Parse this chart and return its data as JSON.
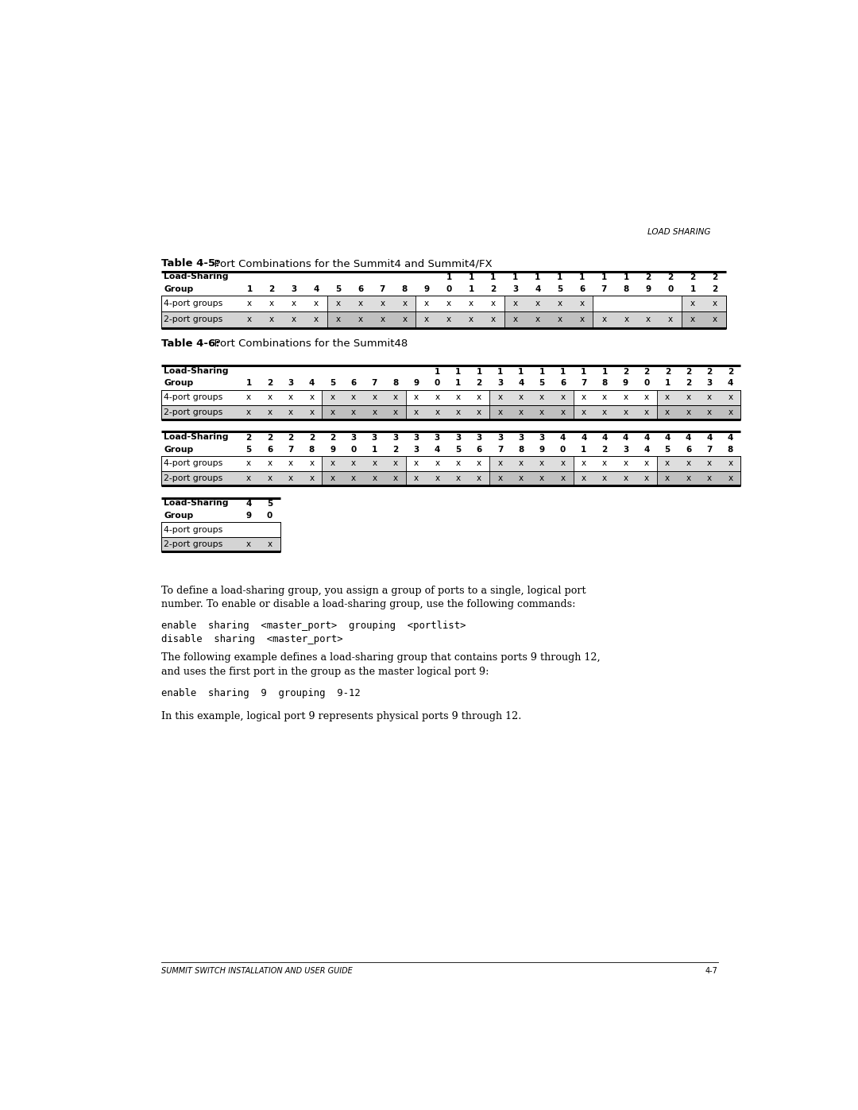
{
  "header_right": "LOAD SHARING",
  "table45_title_bold": "Table 4-5:",
  "table45_title_rest": "  Port Combinations for the Summit4 and Summit4/FX",
  "table46_title_bold": "Table 4-6:",
  "table46_title_rest": "  Port Combinations for the Summit48",
  "footer_left": "SUMMIT SWITCH INSTALLATION AND USER GUIDE",
  "footer_right": "4-7",
  "t45_col_row1": [
    "",
    "",
    "",
    "",
    "",
    "",
    "",
    "",
    "",
    "1",
    "1",
    "1",
    "1",
    "1",
    "1",
    "1",
    "1",
    "1",
    "2",
    "2",
    "2",
    "2"
  ],
  "t45_col_row2": [
    "1",
    "2",
    "3",
    "4",
    "5",
    "6",
    "7",
    "8",
    "9",
    "0",
    "1",
    "2",
    "3",
    "4",
    "5",
    "6",
    "7",
    "8",
    "9",
    "0",
    "1",
    "2"
  ],
  "t45_row1_cells": [
    "x",
    "x",
    "x",
    "x",
    "x",
    "x",
    "x",
    "x",
    "x",
    "x",
    "x",
    "x",
    "x",
    "x",
    "x",
    "x",
    "",
    "",
    "",
    "",
    "x",
    "x"
  ],
  "t45_row2_cells": [
    "x",
    "x",
    "x",
    "x",
    "x",
    "x",
    "x",
    "x",
    "x",
    "x",
    "x",
    "x",
    "x",
    "x",
    "x",
    "x",
    "x",
    "x",
    "x",
    "x",
    "x",
    "x"
  ],
  "t46a_col_row1": [
    "",
    "",
    "",
    "",
    "",
    "",
    "",
    "",
    "",
    "1",
    "1",
    "1",
    "1",
    "1",
    "1",
    "1",
    "1",
    "1",
    "2",
    "2",
    "2",
    "2",
    "2",
    "2"
  ],
  "t46a_col_row2": [
    "1",
    "2",
    "3",
    "4",
    "5",
    "6",
    "7",
    "8",
    "9",
    "0",
    "1",
    "2",
    "3",
    "4",
    "5",
    "6",
    "7",
    "8",
    "9",
    "0",
    "1",
    "2",
    "3",
    "4"
  ],
  "t46a_row1_cells": [
    "x",
    "x",
    "x",
    "x",
    "x",
    "x",
    "x",
    "x",
    "x",
    "x",
    "x",
    "x",
    "x",
    "x",
    "x",
    "x",
    "x",
    "x",
    "x",
    "x",
    "x",
    "x",
    "x",
    "x"
  ],
  "t46a_row2_cells": [
    "x",
    "x",
    "x",
    "x",
    "x",
    "x",
    "x",
    "x",
    "x",
    "x",
    "x",
    "x",
    "x",
    "x",
    "x",
    "x",
    "x",
    "x",
    "x",
    "x",
    "x",
    "x",
    "x",
    "x"
  ],
  "t46b_col_row1": [
    "2",
    "2",
    "2",
    "2",
    "2",
    "3",
    "3",
    "3",
    "3",
    "3",
    "3",
    "3",
    "3",
    "3",
    "3",
    "4",
    "4",
    "4",
    "4",
    "4",
    "4",
    "4",
    "4",
    "4"
  ],
  "t46b_col_row2": [
    "5",
    "6",
    "7",
    "8",
    "9",
    "0",
    "1",
    "2",
    "3",
    "4",
    "5",
    "6",
    "7",
    "8",
    "9",
    "0",
    "1",
    "2",
    "3",
    "4",
    "5",
    "6",
    "7",
    "8"
  ],
  "t46b_row1_cells": [
    "x",
    "x",
    "x",
    "x",
    "x",
    "x",
    "x",
    "x",
    "x",
    "x",
    "x",
    "x",
    "x",
    "x",
    "x",
    "x",
    "x",
    "x",
    "x",
    "x",
    "x",
    "x",
    "x",
    "x"
  ],
  "t46b_row2_cells": [
    "x",
    "x",
    "x",
    "x",
    "x",
    "x",
    "x",
    "x",
    "x",
    "x",
    "x",
    "x",
    "x",
    "x",
    "x",
    "x",
    "x",
    "x",
    "x",
    "x",
    "x",
    "x",
    "x",
    "x"
  ],
  "t46c_col_row1": [
    "4",
    "5"
  ],
  "t46c_col_row2": [
    "9",
    "0"
  ],
  "t46c_row1_cells": [
    "",
    ""
  ],
  "t46c_row2_cells": [
    "x",
    "x"
  ],
  "bg_color": "#ffffff"
}
